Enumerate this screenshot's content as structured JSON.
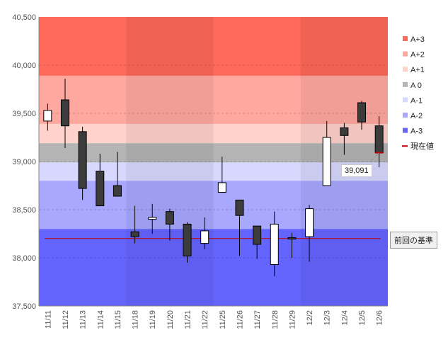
{
  "chart_data": {
    "type": "candlestick",
    "title": "",
    "xlabel": "",
    "ylabel": "",
    "ylim": [
      37500,
      40500
    ],
    "yticks": [
      37500,
      38000,
      38500,
      39000,
      39500,
      40000,
      40500
    ],
    "ytick_labels": [
      "37,500",
      "38,000",
      "38,500",
      "39,000",
      "39,500",
      "40,000",
      "40,500"
    ],
    "grid": "horizontal dashed",
    "legend_position": "right",
    "candles": [
      {
        "date": "11/11",
        "open": 39420,
        "close": 39530,
        "high": 39600,
        "low": 39320
      },
      {
        "date": "11/12",
        "open": 39640,
        "close": 39370,
        "high": 39860,
        "low": 39140
      },
      {
        "date": "11/13",
        "open": 39310,
        "close": 38720,
        "high": 39360,
        "low": 38600
      },
      {
        "date": "11/14",
        "open": 38900,
        "close": 38540,
        "high": 39080,
        "low": 38540
      },
      {
        "date": "11/15",
        "open": 38750,
        "close": 38640,
        "high": 39100,
        "low": 38640
      },
      {
        "date": "11/18",
        "open": 38270,
        "close": 38220,
        "high": 38540,
        "low": 38150
      },
      {
        "date": "11/19",
        "open": 38400,
        "close": 38420,
        "high": 38560,
        "low": 38250
      },
      {
        "date": "11/20",
        "open": 38480,
        "close": 38350,
        "high": 38510,
        "low": 38180
      },
      {
        "date": "11/21",
        "open": 38350,
        "close": 38020,
        "high": 38370,
        "low": 37950
      },
      {
        "date": "11/22",
        "open": 38150,
        "close": 38280,
        "high": 38420,
        "low": 38090
      },
      {
        "date": "11/25",
        "open": 38680,
        "close": 38780,
        "high": 39050,
        "low": 38680
      },
      {
        "date": "11/26",
        "open": 38600,
        "close": 38440,
        "high": 38600,
        "low": 38020
      },
      {
        "date": "11/27",
        "open": 38330,
        "close": 38140,
        "high": 38330,
        "low": 37990
      },
      {
        "date": "11/28",
        "open": 37930,
        "close": 38350,
        "high": 38480,
        "low": 37810
      },
      {
        "date": "11/29",
        "open": 38210,
        "close": 38200,
        "high": 38260,
        "low": 38000
      },
      {
        "date": "12/2",
        "open": 38220,
        "close": 38510,
        "high": 38550,
        "low": 37960
      },
      {
        "date": "12/3",
        "open": 38750,
        "close": 39250,
        "high": 39420,
        "low": 38750
      },
      {
        "date": "12/4",
        "open": 39350,
        "close": 39270,
        "high": 39400,
        "low": 39070
      },
      {
        "date": "12/5",
        "open": 39610,
        "close": 39410,
        "high": 39630,
        "low": 39330
      },
      {
        "date": "12/6",
        "open": 39370,
        "close": 39091,
        "high": 39470,
        "low": 38940
      }
    ],
    "bands": [
      {
        "name": "A+3",
        "from": 39890,
        "to": 40500,
        "color": "#ff6a5a"
      },
      {
        "name": "A+2",
        "from": 39390,
        "to": 39890,
        "color": "#ffa8a0"
      },
      {
        "name": "A+1",
        "from": 39190,
        "to": 39390,
        "color": "#ffd2cb"
      },
      {
        "name": "A 0",
        "from": 38990,
        "to": 39190,
        "color": "#b4b4b4"
      },
      {
        "name": "A-1",
        "from": 38800,
        "to": 38990,
        "color": "#d8d8ff"
      },
      {
        "name": "A-2",
        "from": 38300,
        "to": 38800,
        "color": "#a8a8ff"
      },
      {
        "name": "A-3",
        "from": 37500,
        "to": 38300,
        "color": "#6464ff"
      }
    ],
    "legend": [
      {
        "label": "A+3",
        "color": "#ff6a5a"
      },
      {
        "label": "A+2",
        "color": "#ffa8a0"
      },
      {
        "label": "A+1",
        "color": "#ffd2cb"
      },
      {
        "label": "A 0",
        "color": "#b4b4b4"
      },
      {
        "label": "A-1",
        "color": "#d8d8ff"
      },
      {
        "label": "A-2",
        "color": "#a8a8ff"
      },
      {
        "label": "A-3",
        "color": "#6464ff"
      },
      {
        "label": "現在値",
        "color": "#c00000",
        "kind": "line"
      }
    ],
    "reference_line": {
      "label": "前回の基準",
      "value": 38200,
      "color": "#c00000"
    },
    "last_price": {
      "value": 39091,
      "label": "39,091"
    },
    "week_shading": [
      {
        "from": "11/11",
        "to": "11/15",
        "shade": "light"
      },
      {
        "from": "11/18",
        "to": "11/22",
        "shade": "dark"
      },
      {
        "from": "11/25",
        "to": "11/29",
        "shade": "light"
      },
      {
        "from": "12/2",
        "to": "12/6",
        "shade": "dark"
      }
    ]
  }
}
